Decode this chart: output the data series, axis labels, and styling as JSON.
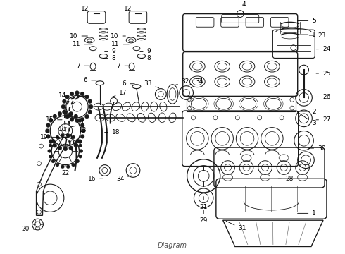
{
  "background_color": "#ffffff",
  "line_color": "#1a1a1a",
  "text_color": "#000000",
  "fig_width": 4.9,
  "fig_height": 3.6,
  "dpi": 100,
  "font_size_label": 6.5,
  "footer": "Diagram"
}
